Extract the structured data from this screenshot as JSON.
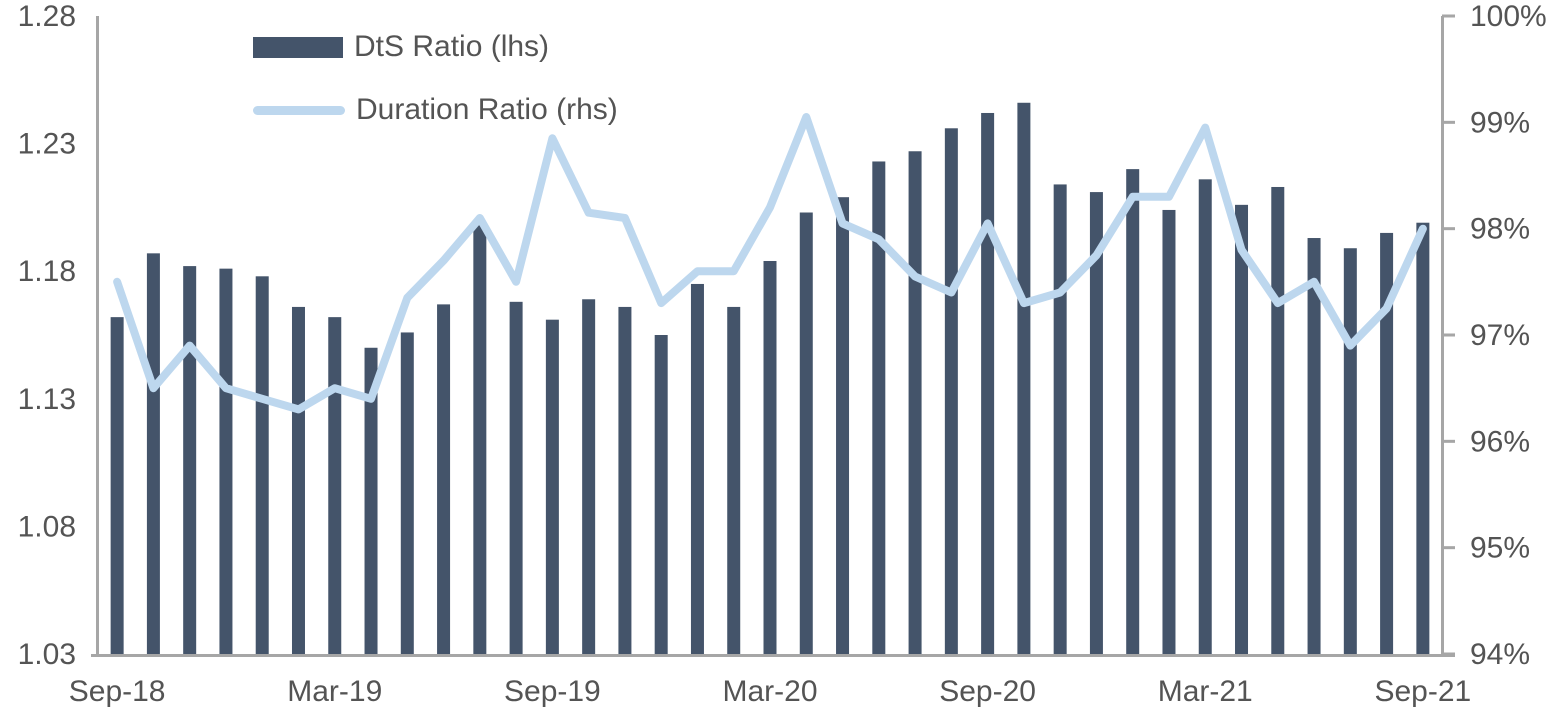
{
  "chart_data": {
    "type": "bar",
    "subtype": "bar+line dual-axis combo",
    "categories": [
      "Sep-18",
      "Oct-18",
      "Nov-18",
      "Dec-18",
      "Jan-19",
      "Feb-19",
      "Mar-19",
      "Apr-19",
      "May-19",
      "Jun-19",
      "Jul-19",
      "Aug-19",
      "Sep-19",
      "Oct-19",
      "Nov-19",
      "Dec-19",
      "Jan-20",
      "Feb-20",
      "Mar-20",
      "Apr-20",
      "May-20",
      "Jun-20",
      "Jul-20",
      "Aug-20",
      "Sep-20",
      "Oct-20",
      "Nov-20",
      "Dec-20",
      "Jan-21",
      "Feb-21",
      "Mar-21",
      "Apr-21",
      "May-21",
      "Jun-21",
      "Jul-21",
      "Aug-21",
      "Sep-21"
    ],
    "series": [
      {
        "name": "DtS Ratio (lhs)",
        "type": "bar",
        "axis": "left",
        "color": "#44546A",
        "values": [
          1.162,
          1.187,
          1.182,
          1.181,
          1.178,
          1.166,
          1.162,
          1.15,
          1.156,
          1.167,
          1.198,
          1.168,
          1.161,
          1.169,
          1.166,
          1.155,
          1.175,
          1.166,
          1.184,
          1.203,
          1.209,
          1.223,
          1.227,
          1.236,
          1.242,
          1.246,
          1.214,
          1.211,
          1.22,
          1.204,
          1.216,
          1.206,
          1.213,
          1.193,
          1.189,
          1.195,
          1.199
        ]
      },
      {
        "name": "Duration Ratio (rhs)",
        "type": "line",
        "axis": "right",
        "color": "#BDD7EE",
        "values": [
          97.5,
          96.5,
          96.9,
          96.5,
          96.4,
          96.3,
          96.5,
          96.4,
          97.35,
          97.7,
          98.1,
          97.5,
          98.85,
          98.15,
          98.1,
          97.3,
          97.6,
          97.6,
          98.2,
          99.05,
          98.05,
          97.9,
          97.55,
          97.4,
          98.05,
          97.3,
          97.4,
          97.75,
          98.3,
          98.3,
          98.95,
          97.8,
          97.3,
          97.5,
          96.9,
          97.25,
          98.0
        ]
      }
    ],
    "left_axis": {
      "range": [
        1.03,
        1.28
      ],
      "tick_labels": [
        "1.28",
        "1.23",
        "1.18",
        "1.13",
        "1.08",
        "1.03"
      ]
    },
    "right_axis": {
      "range": [
        94,
        100
      ],
      "tick_labels": [
        "100%",
        "99%",
        "98%",
        "97%",
        "96%",
        "95%",
        "94%"
      ]
    },
    "x_axis": {
      "tick_indices": [
        0,
        6,
        12,
        18,
        24,
        30,
        36
      ],
      "tick_labels": [
        "Sep-18",
        "Mar-19",
        "Sep-19",
        "Mar-20",
        "Sep-20",
        "Mar-21",
        "Sep-21"
      ]
    },
    "grid": false,
    "legend_position": "top-left-inside",
    "colors": {
      "axis_line": "#A6A6A6",
      "text": "#545454",
      "background": "#FFFFFF"
    }
  }
}
